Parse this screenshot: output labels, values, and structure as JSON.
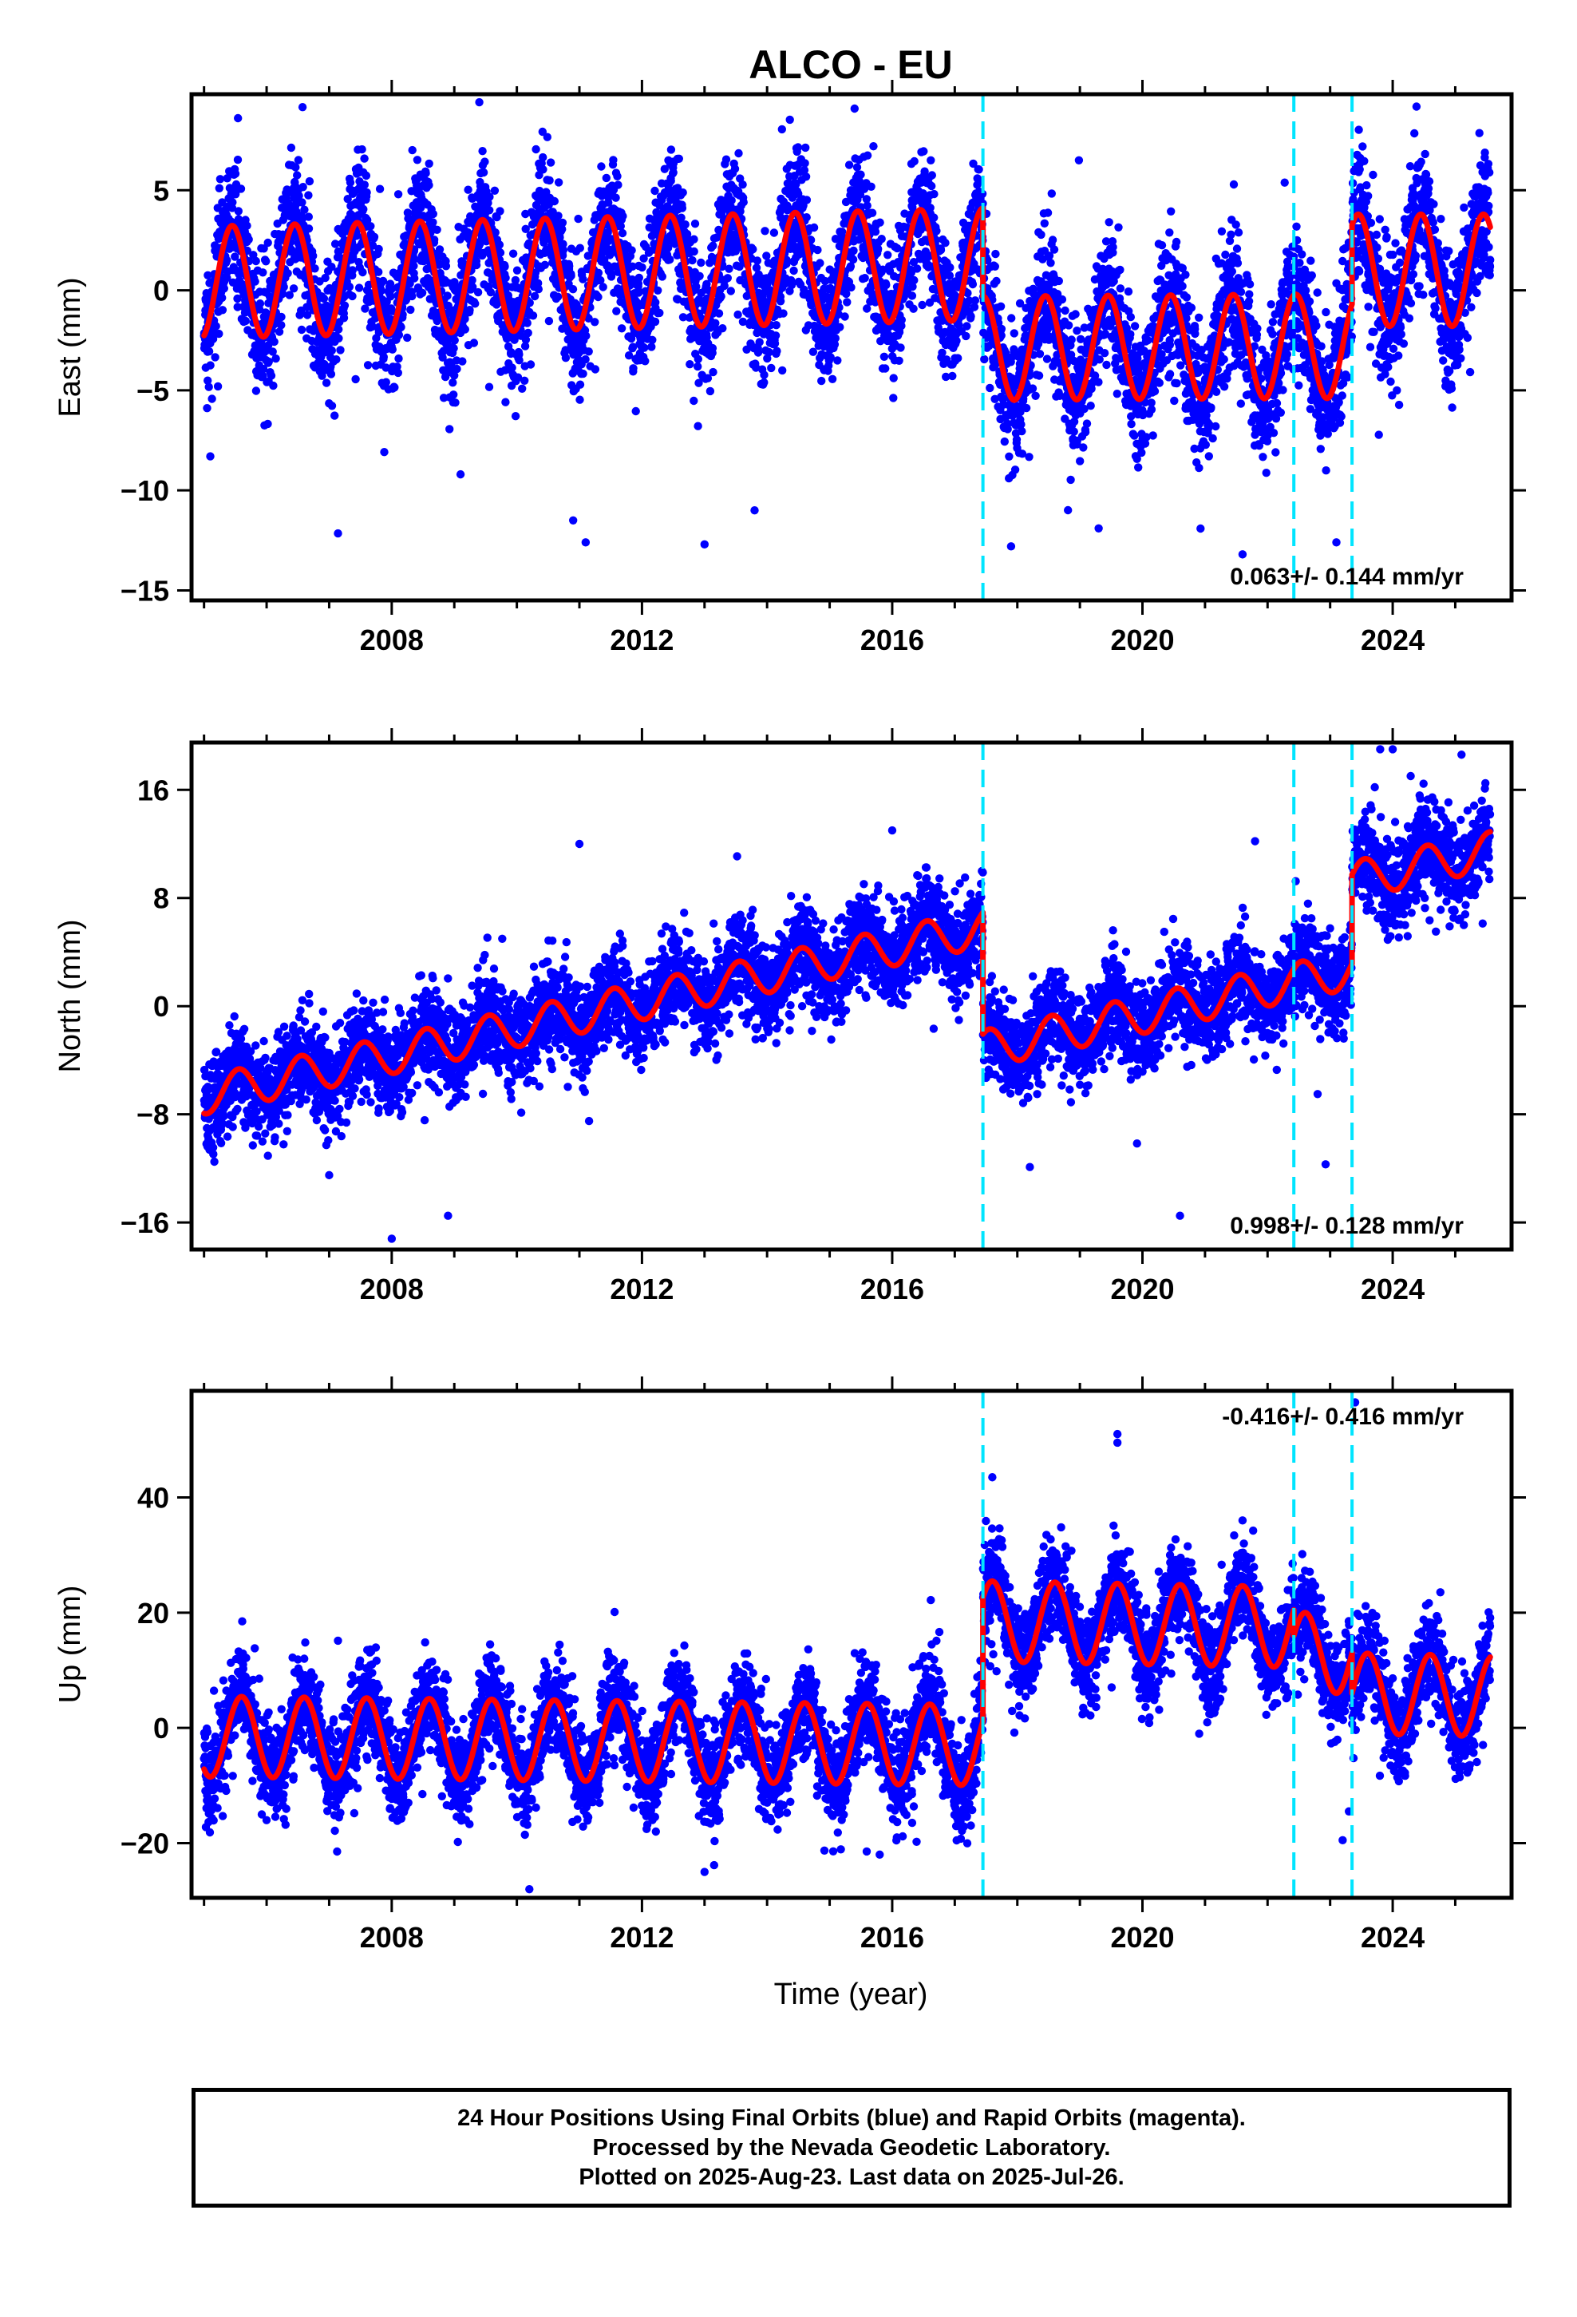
{
  "title": "ALCO - EU",
  "xlabel": "Time (year)",
  "caption": [
    "24 Hour Positions Using Final Orbits (blue) and Rapid Orbits (magenta).",
    "Processed by the Nevada Geodetic Laboratory.",
    "Plotted on 2025-Aug-23. Last data on 2025-Jul-26."
  ],
  "colors": {
    "points": "#0000ff",
    "model": "#ff0000",
    "offsets": "#00e5ff"
  },
  "chart_data": [
    {
      "type": "scatter",
      "component": "east",
      "ylabel": "East (mm)",
      "ylim": [
        -15.5,
        9.8
      ],
      "yticks": [
        5,
        0,
        -5,
        -10,
        -15
      ],
      "xlim": [
        2004.8,
        2025.9
      ],
      "xticks": [
        2008,
        2012,
        2016,
        2020,
        2024
      ],
      "rate_label": "0.063+/- 0.144 mm/yr",
      "rate_position": "bottom-right",
      "offset_epochs": [
        2017.45,
        2022.42,
        2023.35
      ],
      "data_span": [
        2005.0,
        2025.56
      ],
      "model": {
        "segments": [
          {
            "t0": 2005.0,
            "t1": 2017.45,
            "mean_start": 0.4,
            "mean_end": 1.3,
            "amplitude": 2.8
          },
          {
            "t0": 2017.45,
            "t1": 2022.42,
            "mean_start": -2.9,
            "mean_end": -2.8,
            "amplitude": 2.6
          },
          {
            "t0": 2022.42,
            "t1": 2023.35,
            "mean_start": -2.8,
            "mean_end": -2.8,
            "amplitude": 2.6
          },
          {
            "t0": 2023.35,
            "t1": 2025.56,
            "mean_start": 1.0,
            "mean_end": 1.0,
            "amplitude": 2.8
          }
        ],
        "peak_phase": 0.45
      },
      "noise_sd": 1.6,
      "outliers": [
        {
          "x": 2005.1,
          "y": -8.3
        },
        {
          "x": 2009.1,
          "y": -9.2
        },
        {
          "x": 2010.9,
          "y": -11.5
        },
        {
          "x": 2011.1,
          "y": -12.6
        },
        {
          "x": 2013.0,
          "y": -12.7
        },
        {
          "x": 2013.8,
          "y": -11.0
        },
        {
          "x": 2009.4,
          "y": 9.4
        },
        {
          "x": 2017.9,
          "y": -12.8
        },
        {
          "x": 2019.3,
          "y": -11.9
        },
        {
          "x": 2021.6,
          "y": -13.2
        },
        {
          "x": 2023.1,
          "y": -12.6
        },
        {
          "x": 2015.7,
          "y": 7.2
        }
      ]
    },
    {
      "type": "scatter",
      "component": "north",
      "ylabel": "North (mm)",
      "ylim": [
        -18,
        19.5
      ],
      "yticks": [
        16,
        8,
        0,
        -8,
        -16
      ],
      "xlim": [
        2004.8,
        2025.9
      ],
      "xticks": [
        2008,
        2012,
        2016,
        2020,
        2024
      ],
      "rate_label": "0.998+/- 0.128 mm/yr",
      "rate_position": "bottom-right",
      "offset_epochs": [
        2017.45,
        2022.42,
        2023.35
      ],
      "data_span": [
        2005.0,
        2025.56
      ],
      "model": {
        "segments": [
          {
            "t0": 2005.0,
            "t1": 2017.45,
            "mean_start": -6.6,
            "mean_end": 5.8,
            "amplitude": 1.4
          },
          {
            "t0": 2017.45,
            "t1": 2022.42,
            "mean_start": -3.2,
            "mean_end": 1.8,
            "amplitude": 1.4
          },
          {
            "t0": 2022.42,
            "t1": 2023.35,
            "mean_start": 1.8,
            "mean_end": 2.7,
            "amplitude": 1.4
          },
          {
            "t0": 2023.35,
            "t1": 2025.56,
            "mean_start": 9.3,
            "mean_end": 11.5,
            "amplitude": 1.4
          }
        ],
        "peak_phase": 0.55
      },
      "noise_sd": 1.7,
      "outliers": [
        {
          "x": 2008.0,
          "y": -17.2
        },
        {
          "x": 2008.9,
          "y": -15.5
        },
        {
          "x": 2011.0,
          "y": 12.0
        },
        {
          "x": 2016.0,
          "y": 13.0
        },
        {
          "x": 2018.2,
          "y": -11.9
        },
        {
          "x": 2020.6,
          "y": -15.5
        },
        {
          "x": 2023.8,
          "y": 19.0
        },
        {
          "x": 2024.0,
          "y": 19.0
        },
        {
          "x": 2025.1,
          "y": 18.6
        },
        {
          "x": 2021.8,
          "y": 12.2
        },
        {
          "x": 2022.8,
          "y": -6.5
        },
        {
          "x": 2007.0,
          "y": -12.5
        }
      ]
    },
    {
      "type": "scatter",
      "component": "up",
      "ylabel": "Up (mm)",
      "ylim": [
        -29.5,
        58.5
      ],
      "yticks": [
        40,
        20,
        0,
        -20
      ],
      "xlim": [
        2004.8,
        2025.9
      ],
      "xticks": [
        2008,
        2012,
        2016,
        2020,
        2024
      ],
      "rate_label": "-0.416+/- 0.416 mm/yr",
      "rate_position": "top-right",
      "offset_epochs": [
        2017.45,
        2022.42,
        2023.35
      ],
      "data_span": [
        2005.0,
        2025.56
      ],
      "model": {
        "segments": [
          {
            "t0": 2005.0,
            "t1": 2017.45,
            "mean_start": -1.5,
            "mean_end": -3.0,
            "amplitude": 7.0
          },
          {
            "t0": 2017.45,
            "t1": 2022.42,
            "mean_start": 18.5,
            "mean_end": 17.5,
            "amplitude": 7.0
          },
          {
            "t0": 2022.42,
            "t1": 2023.35,
            "mean_start": 13.0,
            "mean_end": 13.0,
            "amplitude": 7.0
          },
          {
            "t0": 2023.35,
            "t1": 2025.56,
            "mean_start": 6.0,
            "mean_end": 5.5,
            "amplitude": 7.0
          }
        ],
        "peak_phase": 0.6
      },
      "noise_sd": 4.2,
      "outliers": [
        {
          "x": 2010.2,
          "y": -28.0
        },
        {
          "x": 2013.0,
          "y": -25.0
        },
        {
          "x": 2017.6,
          "y": 43.5
        },
        {
          "x": 2019.6,
          "y": 51.0
        },
        {
          "x": 2019.6,
          "y": 49.5
        },
        {
          "x": 2021.6,
          "y": 36.0
        },
        {
          "x": 2023.4,
          "y": 56.5
        },
        {
          "x": 2023.3,
          "y": -14.5
        },
        {
          "x": 2023.2,
          "y": -19.5
        },
        {
          "x": 2022.4,
          "y": 28.5
        },
        {
          "x": 2015.8,
          "y": -22.0
        }
      ]
    }
  ]
}
